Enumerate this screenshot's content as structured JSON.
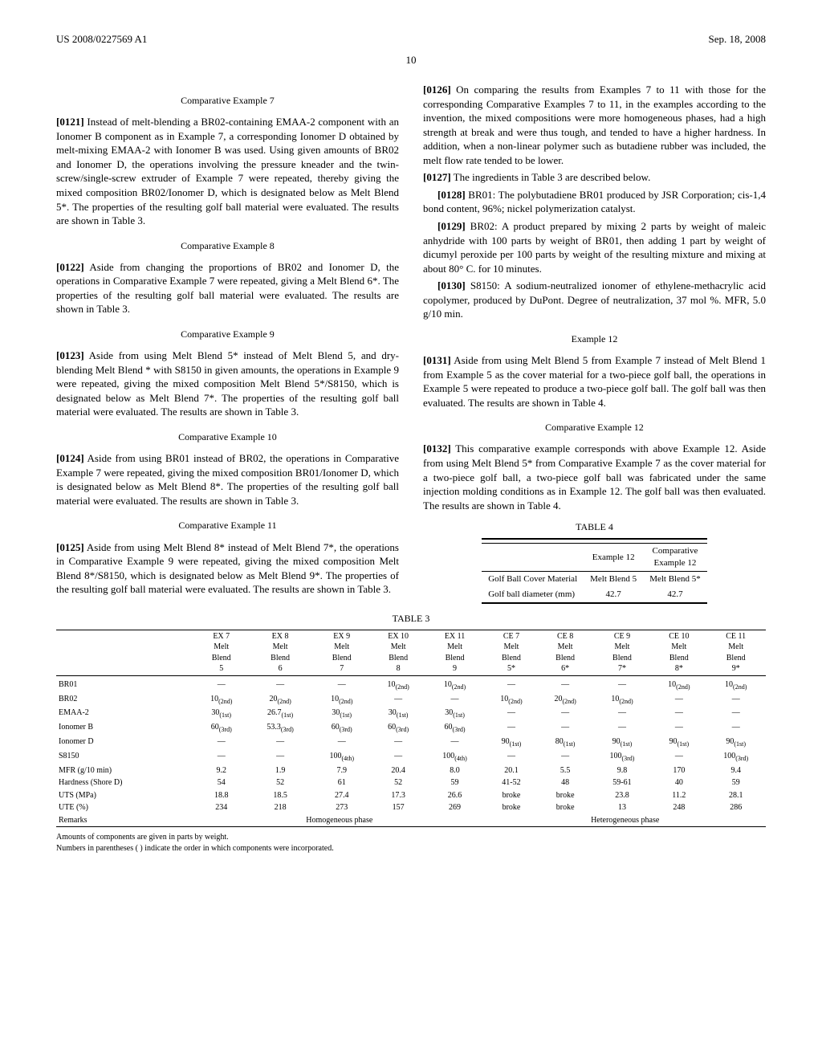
{
  "header": {
    "left": "US 2008/0227569 A1",
    "right": "Sep. 18, 2008",
    "pagenum": "10"
  },
  "left": {
    "s1": {
      "title": "Comparative Example 7",
      "pn": "[0121]",
      "text": "  Instead of melt-blending a BR02-containing EMAA-2 component with an Ionomer B component as in Example 7, a corresponding Ionomer D obtained by melt-mixing EMAA-2 with Ionomer B was used. Using given amounts of BR02 and Ionomer D, the operations involving the pressure kneader and the twin-screw/single-screw extruder of Example 7 were repeated, thereby giving the mixed composition BR02/Ionomer D, which is designated below as Melt Blend 5*. The properties of the resulting golf ball material were evaluated. The results are shown in Table 3."
    },
    "s2": {
      "title": "Comparative Example 8",
      "pn": "[0122]",
      "text": "  Aside from changing the proportions of BR02 and Ionomer D, the operations in Comparative Example 7 were repeated, giving a Melt Blend 6*. The properties of the resulting golf ball material were evaluated. The results are shown in Table 3."
    },
    "s3": {
      "title": "Comparative Example 9",
      "pn": "[0123]",
      "text": "  Aside from using Melt Blend 5* instead of Melt Blend 5, and dry-blending Melt Blend * with S8150 in given amounts, the operations in Example 9 were repeated, giving the mixed composition Melt Blend 5*/S8150, which is designated below as Melt Blend 7*. The properties of the resulting golf ball material were evaluated. The results are shown in Table 3."
    },
    "s4": {
      "title": "Comparative Example 10",
      "pn": "[0124]",
      "text": "  Aside from using BR01 instead of BR02, the operations in Comparative Example 7 were repeated, giving the mixed composition BR01/Ionomer D, which is designated below as Melt Blend 8*. The properties of the resulting golf ball material were evaluated. The results are shown in Table 3."
    },
    "s5": {
      "title": "Comparative Example 11",
      "pn": "[0125]",
      "text": "  Aside from using Melt Blend 8* instead of Melt Blend 7*, the operations in Comparative Example 9 were repeated, giving the mixed composition Melt Blend 8*/S8150, which is designated below as Melt Blend 9*. The properties of the resulting golf ball material were evaluated. The results are shown in Table 3."
    }
  },
  "right": {
    "p126": {
      "pn": "[0126]",
      "text": "  On comparing the results from Examples 7 to 11 with those for the corresponding Comparative Examples 7 to 11, in the examples according to the invention, the mixed compositions were more homogeneous phases, had a high strength at break and were thus tough, and tended to have a higher hardness. In addition, when a non-linear polymer such as butadiene rubber was included, the melt flow rate tended to be lower."
    },
    "p127": {
      "pn": "[0127]",
      "text": "  The ingredients in Table 3 are described below."
    },
    "p128": {
      "pn": "[0128]",
      "text": "  BR01: The polybutadiene BR01 produced by JSR Corporation; cis-1,4 bond content, 96%; nickel polymerization catalyst."
    },
    "p129": {
      "pn": "[0129]",
      "text": "  BR02: A product prepared by mixing 2 parts by weight of maleic anhydride with 100 parts by weight of BR01, then adding 1 part by weight of dicumyl peroxide per 100 parts by weight of the resulting mixture and mixing at about 80° C. for 10 minutes."
    },
    "p130": {
      "pn": "[0130]",
      "text": "  S8150: A sodium-neutralized ionomer of ethylene-methacrylic acid copolymer, produced by DuPont. Degree of neutralization, 37 mol %. MFR, 5.0 g/10 min."
    },
    "s12": {
      "title": "Example 12",
      "pn": "[0131]",
      "text": "  Aside from using Melt Blend 5 from Example 7 instead of Melt Blend 1 from Example 5 as the cover material for a two-piece golf ball, the operations in Example 5 were repeated to produce a two-piece golf ball. The golf ball was then evaluated. The results are shown in Table 4."
    },
    "s12c": {
      "title": "Comparative Example 12",
      "pn": "[0132]",
      "text": "  This comparative example corresponds with above Example 12. Aside from using Melt Blend 5* from Comparative Example 7 as the cover material for a two-piece golf ball, a two-piece golf ball was fabricated under the same injection molding conditions as in Example 12. The golf ball was then evaluated. The results are shown in Table 4."
    }
  },
  "table4": {
    "title": "TABLE 4",
    "headers": [
      "",
      "Example 12",
      "Comparative Example 12"
    ],
    "rows": [
      [
        "Golf Ball Cover Material",
        "Melt Blend 5",
        "Melt Blend 5*"
      ],
      [
        "Golf ball diameter (mm)",
        "42.7",
        "42.7"
      ]
    ]
  },
  "table3": {
    "title": "TABLE 3",
    "headers": [
      "",
      "EX 7 Melt Blend 5",
      "EX 8 Melt Blend 6",
      "EX 9 Melt Blend 7",
      "EX 10 Melt Blend 8",
      "EX 11 Melt Blend 9",
      "CE 7 Melt Blend 5*",
      "CE 8 Melt Blend 6*",
      "CE 9 Melt Blend 7*",
      "CE 10 Melt Blend 8*",
      "CE 11 Melt Blend 9*"
    ],
    "rows": [
      {
        "label": "BR01",
        "v": [
          "—",
          "—",
          "—",
          "10",
          "10",
          "—",
          "—",
          "—",
          "10",
          "10"
        ],
        "sub": [
          "",
          "",
          "",
          "(2nd)",
          "(2nd)",
          "",
          "",
          "",
          "(2nd)",
          "(2nd)"
        ]
      },
      {
        "label": "BR02",
        "v": [
          "10",
          "20",
          "10",
          "—",
          "—",
          "10",
          "20",
          "10",
          "—",
          "—"
        ],
        "sub": [
          "(2nd)",
          "(2nd)",
          "(2nd)",
          "",
          "",
          "(2nd)",
          "(2nd)",
          "(2nd)",
          "",
          ""
        ]
      },
      {
        "label": "EMAA-2",
        "v": [
          "30",
          "26.7",
          "30",
          "30",
          "30",
          "—",
          "—",
          "—",
          "—",
          "—"
        ],
        "sub": [
          "(1st)",
          "(1st)",
          "(1st)",
          "(1st)",
          "(1st)",
          "",
          "",
          "",
          "",
          ""
        ]
      },
      {
        "label": "Ionomer B",
        "v": [
          "60",
          "53.3",
          "60",
          "60",
          "60",
          "—",
          "—",
          "—",
          "—",
          "—"
        ],
        "sub": [
          "(3rd)",
          "(3rd)",
          "(3rd)",
          "(3rd)",
          "(3rd)",
          "",
          "",
          "",
          "",
          ""
        ]
      },
      {
        "label": "Ionomer D",
        "v": [
          "—",
          "—",
          "—",
          "—",
          "—",
          "90",
          "80",
          "90",
          "90",
          "90"
        ],
        "sub": [
          "",
          "",
          "",
          "",
          "",
          "(1st)",
          "(1st)",
          "(1st)",
          "(1st)",
          "(1st)"
        ]
      },
      {
        "label": "S8150",
        "v": [
          "—",
          "—",
          "100",
          "—",
          "100",
          "—",
          "—",
          "100",
          "—",
          "100"
        ],
        "sub": [
          "",
          "",
          "(4th)",
          "",
          "(4th)",
          "",
          "",
          "(3rd)",
          "",
          "(3rd)"
        ]
      },
      {
        "label": "MFR (g/10 min)",
        "v": [
          "9.2",
          "1.9",
          "7.9",
          "20.4",
          "8.0",
          "20.1",
          "5.5",
          "9.8",
          "170",
          "9.4"
        ],
        "sub": [
          "",
          "",
          "",
          "",
          "",
          "",
          "",
          "",
          "",
          ""
        ]
      },
      {
        "label": "Hardness (Shore D)",
        "v": [
          "54",
          "52",
          "61",
          "52",
          "59",
          "41-52",
          "48",
          "59-61",
          "40",
          "59"
        ],
        "sub": [
          "",
          "",
          "",
          "",
          "",
          "",
          "",
          "",
          "",
          ""
        ]
      },
      {
        "label": "UTS (MPa)",
        "v": [
          "18.8",
          "18.5",
          "27.4",
          "17.3",
          "26.6",
          "broke",
          "broke",
          "23.8",
          "11.2",
          "28.1"
        ],
        "sub": [
          "",
          "",
          "",
          "",
          "",
          "",
          "",
          "",
          "",
          ""
        ]
      },
      {
        "label": "UTE (%)",
        "v": [
          "234",
          "218",
          "273",
          "157",
          "269",
          "broke",
          "broke",
          "13",
          "248",
          "286"
        ],
        "sub": [
          "",
          "",
          "",
          "",
          "",
          "",
          "",
          "",
          "",
          ""
        ]
      }
    ],
    "remarks": {
      "label": "Remarks",
      "left": "Homogeneous phase",
      "right": "Heterogeneous phase"
    },
    "footnotes": [
      "Amounts of components are given in parts by weight.",
      "Numbers in parentheses ( ) indicate the order in which components were incorporated."
    ]
  }
}
